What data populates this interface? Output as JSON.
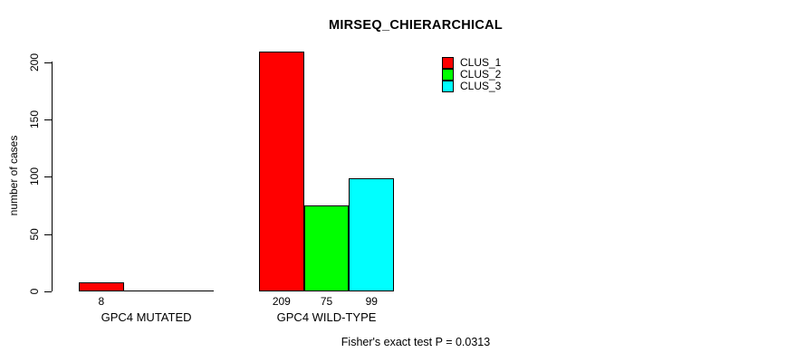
{
  "title": "MIRSEQ_CHIERARCHICAL",
  "y_axis": {
    "label": "number of cases"
  },
  "legend": {
    "items": [
      {
        "label": "CLUS_1",
        "color": "#FF0000"
      },
      {
        "label": "CLUS_2",
        "color": "#00FF00"
      },
      {
        "label": "CLUS_3",
        "color": "#00FFFF"
      }
    ]
  },
  "annotation": "Fisher's exact test P = 0.0313",
  "chart_data": {
    "type": "bar",
    "title": "MIRSEQ_CHIERARCHICAL",
    "categories": [
      "GPC4 MUTATED",
      "GPC4 WILD-TYPE"
    ],
    "series": [
      {
        "name": "CLUS_1",
        "color": "#FF0000",
        "values": [
          8,
          209
        ]
      },
      {
        "name": "CLUS_2",
        "color": "#00FF00",
        "values": [
          0,
          75
        ]
      },
      {
        "name": "CLUS_3",
        "color": "#00FFFF",
        "values": [
          0,
          99
        ]
      }
    ],
    "bar_value_labels": [
      [
        "8",
        "",
        ""
      ],
      [
        "209",
        "75",
        "99"
      ]
    ],
    "xlabel": "",
    "ylabel": "number of cases",
    "ylim": [
      0,
      200
    ],
    "yticks": [
      0,
      50,
      100,
      150,
      200
    ],
    "grid": false,
    "legend_position": "top-right",
    "annotation": "Fisher's exact test P = 0.0313"
  }
}
